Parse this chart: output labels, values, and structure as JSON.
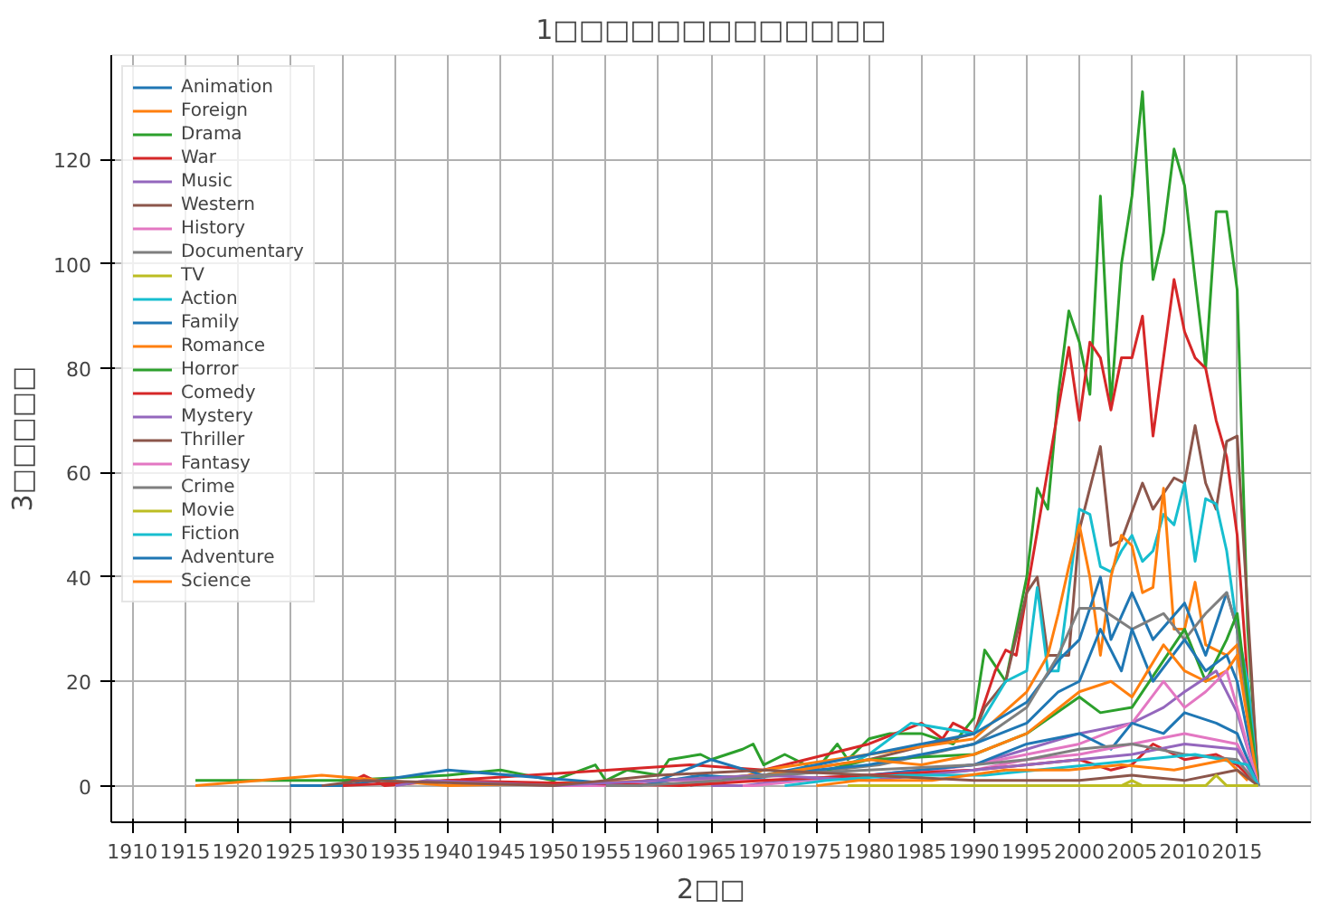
{
  "chart_data": {
    "type": "line",
    "title": "1□□□□□□□□□□□□□",
    "xlabel": "2□□",
    "ylabel": "3□□□□□",
    "xlim": [
      1908,
      2022
    ],
    "ylim": [
      -7,
      140
    ],
    "xticks": [
      1910,
      1915,
      1920,
      1925,
      1930,
      1935,
      1940,
      1945,
      1950,
      1955,
      1960,
      1965,
      1970,
      1975,
      1980,
      1985,
      1990,
      1995,
      2000,
      2005,
      2010,
      2015
    ],
    "yticks": [
      0,
      20,
      40,
      60,
      80,
      100,
      120
    ],
    "grid": true,
    "legend": "top left",
    "marker": "none",
    "line_style": "solid",
    "series": [
      {
        "name": "Animation",
        "color": "#1f77b4",
        "x": [
          1925,
          1930,
          1940,
          1958,
          1964,
          1971,
          1980,
          1985,
          1990,
          1995,
          2000,
          2003,
          2005,
          2008,
          2010,
          2013,
          2015,
          2017
        ],
        "values": [
          0,
          0,
          3,
          0,
          2,
          1,
          2,
          3,
          4,
          8,
          10,
          7,
          12,
          10,
          14,
          12,
          10,
          0
        ]
      },
      {
        "name": "Foreign",
        "color": "#ff7f0e",
        "x": [
          1916,
          1928,
          1940,
          1961,
          1970,
          1980,
          1985,
          1990,
          1995,
          2000,
          2003,
          2005,
          2008,
          2010,
          2012,
          2014,
          2015,
          2017
        ],
        "values": [
          0,
          2,
          0,
          1,
          2,
          5,
          4,
          6,
          10,
          18,
          20,
          17,
          27,
          22,
          20,
          22,
          25,
          0
        ]
      },
      {
        "name": "Drama",
        "color": "#2ca02c",
        "x": [
          1916,
          1930,
          1940,
          1945,
          1950,
          1954,
          1955,
          1957,
          1960,
          1961,
          1964,
          1965,
          1968,
          1969,
          1970,
          1972,
          1975,
          1977,
          1978,
          1980,
          1982,
          1985,
          1988,
          1990,
          1991,
          1993,
          1995,
          1996,
          1997,
          1998,
          1999,
          2000,
          2001,
          2002,
          2003,
          2004,
          2005,
          2006,
          2007,
          2008,
          2009,
          2010,
          2011,
          2012,
          2013,
          2014,
          2015,
          2016,
          2017
        ],
        "values": [
          1,
          1,
          2,
          3,
          1,
          4,
          1,
          3,
          2,
          5,
          6,
          5,
          7,
          8,
          4,
          6,
          3,
          8,
          5,
          9,
          10,
          10,
          8,
          13,
          26,
          20,
          40,
          57,
          53,
          75,
          91,
          85,
          75,
          113,
          73,
          100,
          113,
          133,
          97,
          106,
          122,
          115,
          97,
          80,
          110,
          110,
          95,
          30,
          0
        ]
      },
      {
        "name": "War",
        "color": "#d62728",
        "x": [
          1930,
          1940,
          1962,
          1970,
          1980,
          1990,
          1995,
          2000,
          2003,
          2005,
          2007,
          2010,
          2013,
          2015,
          2017
        ],
        "values": [
          0,
          1,
          0,
          1,
          2,
          3,
          4,
          5,
          3,
          4,
          8,
          5,
          6,
          4,
          0
        ]
      },
      {
        "name": "Music",
        "color": "#9467bd",
        "x": [
          1935,
          1938,
          1950,
          1960,
          1970,
          1980,
          1990,
          1995,
          2000,
          2005,
          2010,
          2015,
          2017
        ],
        "values": [
          0,
          1,
          0,
          1,
          2,
          1,
          3,
          4,
          5,
          6,
          8,
          7,
          0
        ]
      },
      {
        "name": "Western",
        "color": "#8c564b",
        "x": [
          1928,
          1932,
          1950,
          1960,
          1970,
          1980,
          1990,
          2000,
          2005,
          2010,
          2015,
          2017
        ],
        "values": [
          0,
          1,
          0,
          2,
          3,
          2,
          1,
          1,
          2,
          1,
          3,
          0
        ]
      },
      {
        "name": "History",
        "color": "#e377c2",
        "x": [
          1950,
          1955,
          1960,
          1970,
          1980,
          1990,
          1995,
          2000,
          2005,
          2010,
          2015,
          2017
        ],
        "values": [
          0,
          0,
          1,
          1,
          2,
          3,
          5,
          6,
          8,
          10,
          8,
          0
        ]
      },
      {
        "name": "Documentary",
        "color": "#7f7f7f",
        "x": [
          1955,
          1958,
          1966,
          1970,
          1980,
          1990,
          1995,
          2000,
          2005,
          2010,
          2015,
          2017
        ],
        "values": [
          0,
          0,
          1,
          2,
          3,
          4,
          5,
          7,
          8,
          6,
          5,
          0
        ]
      },
      {
        "name": "TV",
        "color": "#bcbd22",
        "x": [
          1978,
          2012,
          2013,
          2014,
          2017
        ],
        "values": [
          0,
          0,
          2,
          0,
          0
        ]
      },
      {
        "name": "Action",
        "color": "#17becf",
        "x": [
          1978,
          1980,
          1984,
          1990,
          1993,
          1995,
          1996,
          1997,
          1998,
          2000,
          2001,
          2002,
          2003,
          2004,
          2005,
          2006,
          2007,
          2008,
          2009,
          2010,
          2011,
          2012,
          2013,
          2014,
          2015,
          2016,
          2017
        ],
        "values": [
          4,
          6,
          12,
          10,
          20,
          22,
          38,
          22,
          22,
          53,
          52,
          42,
          41,
          45,
          48,
          43,
          45,
          52,
          50,
          58,
          43,
          55,
          54,
          45,
          30,
          20,
          0
        ]
      },
      {
        "name": "Family",
        "color": "#1f77b4",
        "x": [
          1958,
          1961,
          1970,
          1980,
          1990,
          1995,
          1998,
          2000,
          2002,
          2004,
          2005,
          2007,
          2010,
          2012,
          2014,
          2015,
          2017
        ],
        "values": [
          0,
          1,
          2,
          4,
          8,
          12,
          18,
          20,
          30,
          22,
          30,
          20,
          28,
          22,
          25,
          20,
          0
        ]
      },
      {
        "name": "Romance",
        "color": "#ff7f0e",
        "x": [
          1962,
          1967,
          1970,
          1980,
          1990,
          1995,
          1997,
          1998,
          1999,
          2000,
          2001,
          2002,
          2003,
          2004,
          2005,
          2006,
          2007,
          2008,
          2009,
          2010,
          2011,
          2012,
          2013,
          2014,
          2015,
          2017
        ],
        "values": [
          0,
          1,
          3,
          6,
          9,
          18,
          25,
          33,
          42,
          50,
          40,
          25,
          40,
          48,
          46,
          37,
          38,
          57,
          30,
          30,
          39,
          27,
          26,
          25,
          27,
          0
        ]
      },
      {
        "name": "Horror",
        "color": "#2ca02c",
        "x": [
          1976,
          1980,
          1990,
          1995,
          2000,
          2002,
          2005,
          2008,
          2010,
          2012,
          2014,
          2015,
          2017
        ],
        "values": [
          3,
          5,
          6,
          10,
          17,
          14,
          15,
          24,
          30,
          20,
          28,
          33,
          0
        ]
      },
      {
        "name": "Comedy",
        "color": "#d62728",
        "x": [
          1925,
          1930,
          1932,
          1934,
          1940,
          1963,
          1970,
          1980,
          1985,
          1987,
          1988,
          1990,
          1992,
          1993,
          1994,
          1995,
          1999,
          2000,
          2001,
          2002,
          2003,
          2004,
          2005,
          2006,
          2007,
          2008,
          2009,
          2010,
          2011,
          2012,
          2013,
          2014,
          2015,
          2016,
          2017
        ],
        "values": [
          0,
          0,
          2,
          0,
          1,
          4,
          3,
          8,
          12,
          9,
          12,
          10,
          22,
          26,
          25,
          37,
          84,
          70,
          85,
          82,
          72,
          82,
          82,
          90,
          67,
          82,
          97,
          87,
          82,
          80,
          70,
          63,
          48,
          20,
          0
        ]
      },
      {
        "name": "Mystery",
        "color": "#9467bd",
        "x": [
          1965,
          1968,
          1972,
          1980,
          1990,
          1995,
          2000,
          2005,
          2008,
          2010,
          2013,
          2015,
          2017
        ],
        "values": [
          0,
          0,
          1,
          2,
          4,
          7,
          10,
          12,
          15,
          18,
          22,
          14,
          0
        ]
      },
      {
        "name": "Thriller",
        "color": "#8c564b",
        "x": [
          1955,
          1959,
          1970,
          1980,
          1990,
          1991,
          1993,
          1995,
          1996,
          1997,
          1998,
          1999,
          2000,
          2002,
          2003,
          2004,
          2006,
          2007,
          2009,
          2010,
          2011,
          2012,
          2013,
          2014,
          2015,
          2017
        ],
        "values": [
          0,
          1,
          2,
          5,
          10,
          15,
          20,
          37,
          40,
          25,
          25,
          25,
          49,
          65,
          46,
          47,
          58,
          53,
          59,
          58,
          69,
          58,
          53,
          66,
          67,
          0
        ]
      },
      {
        "name": "Fantasy",
        "color": "#e377c2",
        "x": [
          1968,
          1969,
          1974,
          1982,
          1990,
          1995,
          2000,
          2005,
          2008,
          2010,
          2012,
          2014,
          2015,
          2017
        ],
        "values": [
          0,
          0,
          1,
          2,
          4,
          6,
          8,
          12,
          20,
          15,
          18,
          22,
          15,
          0
        ]
      },
      {
        "name": "Crime",
        "color": "#7f7f7f",
        "x": [
          1963,
          1965,
          1972,
          1981,
          1990,
          1995,
          1998,
          2000,
          2002,
          2005,
          2008,
          2010,
          2012,
          2014,
          2015,
          2017
        ],
        "values": [
          0,
          1,
          2,
          4,
          8,
          15,
          25,
          34,
          34,
          30,
          33,
          28,
          33,
          37,
          30,
          0
        ]
      },
      {
        "name": "Movie",
        "color": "#bcbd22",
        "x": [
          2003,
          2004,
          2005,
          2006,
          2007
        ],
        "values": [
          0,
          0,
          1,
          0,
          0
        ]
      },
      {
        "name": "Fiction",
        "color": "#17becf",
        "x": [
          1972,
          1976,
          1983,
          1991,
          2001,
          2006,
          2011,
          2016,
          2017
        ],
        "values": [
          0,
          1,
          2,
          2,
          4,
          5,
          6,
          4,
          0
        ]
      },
      {
        "name": "Adventure",
        "color": "#1f77b4",
        "x": [
          1950,
          1960,
          1965,
          1970,
          1980,
          1990,
          1995,
          1998,
          2000,
          2002,
          2003,
          2005,
          2007,
          2010,
          2012,
          2014,
          2015,
          2017
        ],
        "values": [
          0,
          1,
          5,
          2,
          6,
          10,
          16,
          24,
          28,
          40,
          28,
          37,
          28,
          35,
          25,
          37,
          30,
          0
        ]
      },
      {
        "name": "Science",
        "color": "#ff7f0e",
        "x": [
          1975,
          1979,
          1986,
          1993,
          1999,
          2004,
          2009,
          2014,
          2016
        ],
        "values": [
          0,
          1,
          1,
          3,
          3,
          4,
          3,
          5,
          1
        ]
      }
    ]
  }
}
